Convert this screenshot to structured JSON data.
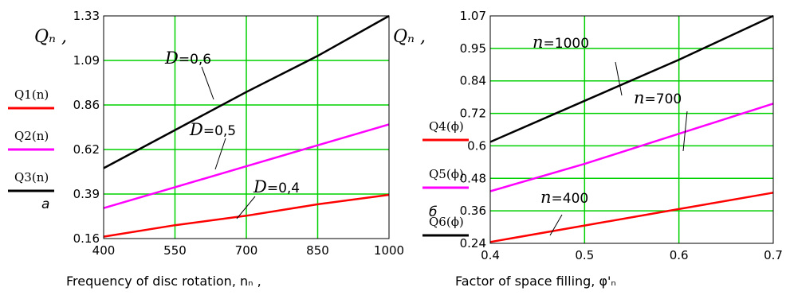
{
  "chart_data": [
    {
      "type": "line",
      "panel_label": "a",
      "ylabel": "Qₙ ,",
      "xlabel": "Frequency of disc rotation, nₙ ,",
      "xlim": [
        400,
        1000
      ],
      "ylim": [
        0.16,
        1.33
      ],
      "xticks": [
        "400",
        "550",
        "700",
        "850",
        "1000"
      ],
      "yticks": [
        "0.16",
        "0.39",
        "0.62",
        "0.86",
        "1.09",
        "1.33"
      ],
      "grid": true,
      "legend_position": "left",
      "series": [
        {
          "name": "Q1(n)",
          "color": "#ff0000",
          "x": [
            400,
            550,
            700,
            850,
            1000
          ],
          "y": [
            0.17,
            0.23,
            0.28,
            0.34,
            0.39
          ]
        },
        {
          "name": "Q2(n)",
          "color": "#ff00ff",
          "x": [
            400,
            550,
            700,
            850,
            1000
          ],
          "y": [
            0.32,
            0.43,
            0.54,
            0.65,
            0.76
          ]
        },
        {
          "name": "Q3(n)",
          "color": "#000000",
          "x": [
            400,
            550,
            700,
            850,
            1000
          ],
          "y": [
            0.53,
            0.73,
            0.93,
            1.12,
            1.33
          ]
        }
      ],
      "annotations": [
        {
          "text": "=0,6",
          "symbol": "D",
          "series": "Q3(n)"
        },
        {
          "text": "=0,5",
          "symbol": "D",
          "series": "Q2(n)"
        },
        {
          "text": "=0,4",
          "symbol": "D",
          "series": "Q1(n)"
        }
      ]
    },
    {
      "type": "line",
      "panel_label": "б",
      "ylabel": "Qₙ ,",
      "xlabel": "Factor of space filling, φ'ₙ",
      "xlim": [
        0.4,
        0.7
      ],
      "ylim": [
        0.24,
        1.07
      ],
      "xticks": [
        "0.4",
        "0.5",
        "0.6",
        "0.7"
      ],
      "yticks": [
        "0.24",
        "0.36",
        "0.48",
        "0.6",
        "0.72",
        "0.84",
        "0.95",
        "1.07"
      ],
      "grid": true,
      "legend_position": "left",
      "series": [
        {
          "name": "Q4(ϕ)",
          "color": "#ff0000",
          "x": [
            0.4,
            0.5,
            0.6,
            0.7
          ],
          "y": [
            0.245,
            0.305,
            0.365,
            0.425
          ]
        },
        {
          "name": "Q5(ϕ)",
          "color": "#ff00ff",
          "x": [
            0.4,
            0.5,
            0.6,
            0.7
          ],
          "y": [
            0.43,
            0.53,
            0.64,
            0.75
          ]
        },
        {
          "name": "Q6(ϕ)",
          "color": "#000000",
          "x": [
            0.4,
            0.5,
            0.6,
            0.7
          ],
          "y": [
            0.61,
            0.76,
            0.91,
            1.07
          ]
        }
      ],
      "annotations": [
        {
          "text": "=1000",
          "symbol": "n",
          "series": "Q6(ϕ)"
        },
        {
          "text": "=700",
          "symbol": "n",
          "series": "Q5(ϕ)"
        },
        {
          "text": "=400",
          "symbol": "n",
          "series": "Q4(ϕ)"
        }
      ]
    }
  ]
}
